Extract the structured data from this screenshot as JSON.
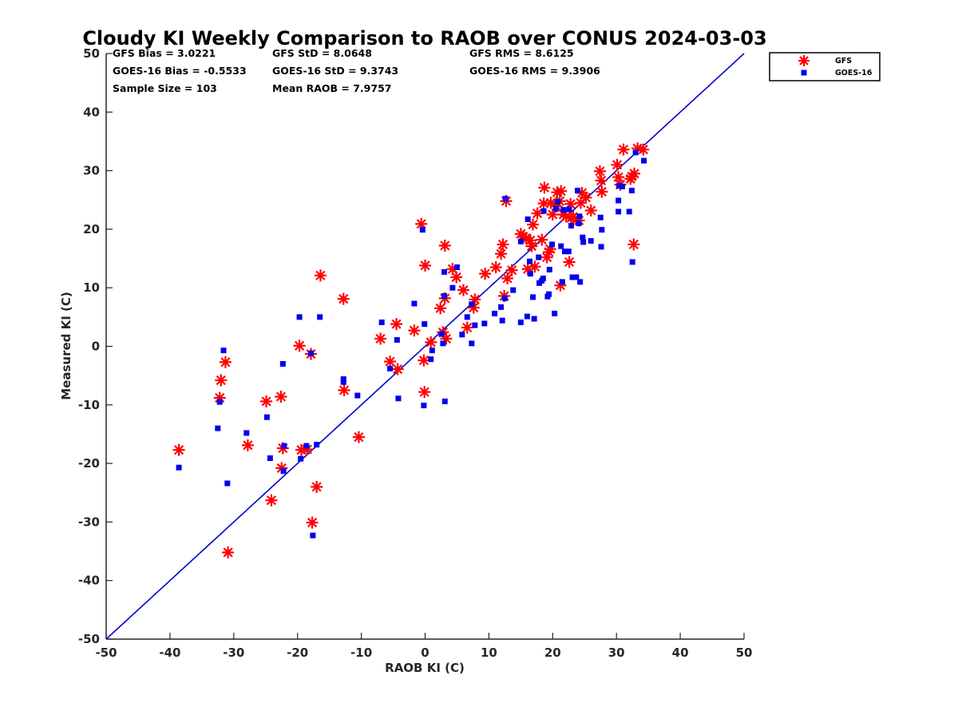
{
  "chart_data": {
    "type": "scatter",
    "title": "Cloudy KI Weekly Comparison to RAOB over CONUS 2024-03-03",
    "xlabel": "RAOB KI (C)",
    "ylabel": "Measured KI (C)",
    "xlim": [
      -50,
      50
    ],
    "ylim": [
      -50,
      50
    ],
    "xticks": [
      "-50",
      "-40",
      "-30",
      "-20",
      "-10",
      "0",
      "10",
      "20",
      "30",
      "40",
      "50"
    ],
    "yticks": [
      "-50",
      "-40",
      "-30",
      "-20",
      "-10",
      "0",
      "10",
      "20",
      "30",
      "40",
      "50"
    ],
    "xtick_values": [
      -50,
      -40,
      -30,
      -20,
      -10,
      0,
      10,
      20,
      30,
      40,
      50
    ],
    "ytick_values": [
      -50,
      -40,
      -30,
      -20,
      -10,
      0,
      10,
      20,
      30,
      40,
      50
    ],
    "grid": false,
    "legend_position": "top-right (outside)",
    "reference_line": {
      "name": "1:1 line",
      "x": [
        -50,
        50
      ],
      "y": [
        -50,
        50
      ],
      "color": "#0000cc"
    },
    "stats": {
      "gfs_bias": "GFS Bias = 3.0221",
      "goes_bias": "GOES-16 Bias = -0.5533",
      "sample_size": "Sample Size = 103",
      "gfs_std": "GFS StD = 8.0648",
      "goes_std": "GOES-16 StD = 9.3743",
      "mean_raob": "Mean RAOB = 7.9757",
      "gfs_rms": "GFS RMS = 8.6125",
      "goes_rms": "GOES-16 RMS = 9.3906"
    },
    "series": [
      {
        "name": "GFS",
        "marker": "asterisk",
        "color": "#ff0000",
        "points": [
          [
            -38.6,
            -17.7
          ],
          [
            -32.2,
            -8.8
          ],
          [
            -32,
            -5.8
          ],
          [
            -31.3,
            -2.7
          ],
          [
            -30.9,
            -35.2
          ],
          [
            -27.8,
            -16.9
          ],
          [
            -24.9,
            -9.4
          ],
          [
            -24.1,
            -26.3
          ],
          [
            -22.6,
            -8.6
          ],
          [
            -22.5,
            -20.8
          ],
          [
            -22.3,
            -17.4
          ],
          [
            -19.7,
            0.1
          ],
          [
            -19.4,
            -17.7
          ],
          [
            -18.5,
            -17.6
          ],
          [
            -17.9,
            -1.3
          ],
          [
            -17.7,
            -30.1
          ],
          [
            -17,
            -24
          ],
          [
            -16.4,
            12.1
          ],
          [
            -12.8,
            8.1
          ],
          [
            -12.7,
            -7.5
          ],
          [
            -10.4,
            -15.5
          ],
          [
            -7,
            1.3
          ],
          [
            -5.5,
            -2.6
          ],
          [
            -4.5,
            3.8
          ],
          [
            -4.3,
            -3.9
          ],
          [
            -1.7,
            2.7
          ],
          [
            -0.6,
            20.9
          ],
          [
            -0.2,
            -2.4
          ],
          [
            -0.1,
            -7.8
          ],
          [
            0,
            13.8
          ],
          [
            0.9,
            0.7
          ],
          [
            2.4,
            6.5
          ],
          [
            2.8,
            2.4
          ],
          [
            3.1,
            17.2
          ],
          [
            3.1,
            8.2
          ],
          [
            3.3,
            1.3
          ],
          [
            4.3,
            13.2
          ],
          [
            4.9,
            11.8
          ],
          [
            6,
            9.6
          ],
          [
            6.6,
            3.2
          ],
          [
            7.6,
            6.6
          ],
          [
            7.8,
            8
          ],
          [
            9.4,
            12.4
          ],
          [
            11.1,
            13.5
          ],
          [
            11.9,
            15.8
          ],
          [
            12.2,
            17.4
          ],
          [
            12.4,
            8.6
          ],
          [
            12.7,
            24.8
          ],
          [
            12.9,
            11.6
          ],
          [
            13.6,
            13
          ],
          [
            15,
            19.2
          ],
          [
            15.4,
            18.7
          ],
          [
            15.8,
            18.5
          ],
          [
            16.1,
            13.2
          ],
          [
            16.5,
            18.1
          ],
          [
            16.7,
            17.1
          ],
          [
            16.9,
            20.8
          ],
          [
            17.2,
            13.6
          ],
          [
            17.6,
            22.7
          ],
          [
            18.3,
            18.2
          ],
          [
            18.6,
            24.4
          ],
          [
            18.7,
            27.1
          ],
          [
            19.1,
            15.2
          ],
          [
            19.4,
            16.1
          ],
          [
            19.6,
            16.6
          ],
          [
            19.7,
            24.5
          ],
          [
            20,
            22.5
          ],
          [
            20.6,
            23.9
          ],
          [
            20.7,
            26.3
          ],
          [
            21.1,
            24.8
          ],
          [
            21.2,
            10.4
          ],
          [
            21.3,
            26.5
          ],
          [
            21.7,
            22.5
          ],
          [
            22.1,
            22.2
          ],
          [
            22.6,
            14.4
          ],
          [
            22.8,
            24.3
          ],
          [
            22.9,
            21.9
          ],
          [
            23.2,
            22.1
          ],
          [
            24.1,
            21.5
          ],
          [
            24.4,
            24.5
          ],
          [
            24.6,
            26.2
          ],
          [
            25.2,
            25.4
          ],
          [
            26,
            23.2
          ],
          [
            27.4,
            29.9
          ],
          [
            27.6,
            28.3
          ],
          [
            27.7,
            26.4
          ],
          [
            30.1,
            31
          ],
          [
            30.3,
            28.9
          ],
          [
            30.6,
            27.6
          ],
          [
            31.1,
            33.6
          ],
          [
            32.2,
            28.6
          ],
          [
            32.4,
            29
          ],
          [
            32.7,
            17.4
          ],
          [
            32.8,
            29.5
          ],
          [
            33.3,
            33.8
          ],
          [
            34.2,
            33.6
          ]
        ]
      },
      {
        "name": "GOES-16",
        "marker": "square",
        "color": "#0000ee",
        "points": [
          [
            -38.6,
            -20.7
          ],
          [
            -32.5,
            -14
          ],
          [
            -32.2,
            -9.5
          ],
          [
            -31.6,
            -0.7
          ],
          [
            -31,
            -23.4
          ],
          [
            -28,
            -14.8
          ],
          [
            -24.8,
            -12.1
          ],
          [
            -24.3,
            -19.1
          ],
          [
            -22.3,
            -3
          ],
          [
            -22.2,
            -21.3
          ],
          [
            -22.1,
            -17
          ],
          [
            -19.7,
            5
          ],
          [
            -19.5,
            -19.2
          ],
          [
            -18.6,
            -17
          ],
          [
            -17.9,
            -1.2
          ],
          [
            -17.6,
            -32.3
          ],
          [
            -17,
            -16.8
          ],
          [
            -16.5,
            5
          ],
          [
            -12.8,
            -5.6
          ],
          [
            -12.8,
            -6.1
          ],
          [
            -10.6,
            -8.4
          ],
          [
            -6.8,
            4.1
          ],
          [
            -5.5,
            -3.8
          ],
          [
            -4.4,
            1.1
          ],
          [
            -4.2,
            -8.9
          ],
          [
            -1.7,
            7.3
          ],
          [
            -0.4,
            19.9
          ],
          [
            -0.1,
            3.8
          ],
          [
            -0.2,
            -10.1
          ],
          [
            0.9,
            -2.2
          ],
          [
            1.1,
            -0.7
          ],
          [
            2.6,
            2.1
          ],
          [
            2.8,
            0.5
          ],
          [
            3,
            8.6
          ],
          [
            3.1,
            -9.4
          ],
          [
            3,
            12.7
          ],
          [
            4.3,
            10
          ],
          [
            5,
            13.5
          ],
          [
            5.8,
            2
          ],
          [
            6.6,
            5
          ],
          [
            7.3,
            7.2
          ],
          [
            7.3,
            0.5
          ],
          [
            7.8,
            3.6
          ],
          [
            9.3,
            3.9
          ],
          [
            10.9,
            5.6
          ],
          [
            11.9,
            6.7
          ],
          [
            12.1,
            4.4
          ],
          [
            12.6,
            25.2
          ],
          [
            12.5,
            8.2
          ],
          [
            13.8,
            9.6
          ],
          [
            15,
            17.9
          ],
          [
            15,
            4.1
          ],
          [
            16.1,
            21.7
          ],
          [
            16,
            5.1
          ],
          [
            16.4,
            14.5
          ],
          [
            16.5,
            12.4
          ],
          [
            16.9,
            8.4
          ],
          [
            17.1,
            4.7
          ],
          [
            17.8,
            15.2
          ],
          [
            17.9,
            10.8
          ],
          [
            18.3,
            11.2
          ],
          [
            18.5,
            11.6
          ],
          [
            18.6,
            23.1
          ],
          [
            19.2,
            8.5
          ],
          [
            19.4,
            8.9
          ],
          [
            19.5,
            13.1
          ],
          [
            19.9,
            17.4
          ],
          [
            20.3,
            5.6
          ],
          [
            20.5,
            23.5
          ],
          [
            20.8,
            24.7
          ],
          [
            21.3,
            17.1
          ],
          [
            21.5,
            11
          ],
          [
            21.7,
            23.3
          ],
          [
            21.9,
            16.2
          ],
          [
            22.5,
            16.2
          ],
          [
            22.6,
            23.4
          ],
          [
            22.9,
            20.6
          ],
          [
            23.1,
            11.8
          ],
          [
            23.7,
            11.8
          ],
          [
            23.9,
            26.6
          ],
          [
            24.2,
            22.2
          ],
          [
            24.1,
            21
          ],
          [
            24.3,
            11
          ],
          [
            24.7,
            18.6
          ],
          [
            24.8,
            17.8
          ],
          [
            26,
            18
          ],
          [
            27.5,
            22
          ],
          [
            27.6,
            17
          ],
          [
            27.7,
            19.9
          ],
          [
            30.3,
            24.9
          ],
          [
            30.4,
            27.4
          ],
          [
            30.3,
            23
          ],
          [
            30.9,
            27.3
          ],
          [
            32,
            23
          ],
          [
            32.4,
            26.6
          ],
          [
            32.5,
            14.4
          ],
          [
            33,
            33.1
          ],
          [
            34.3,
            31.7
          ]
        ]
      }
    ]
  }
}
